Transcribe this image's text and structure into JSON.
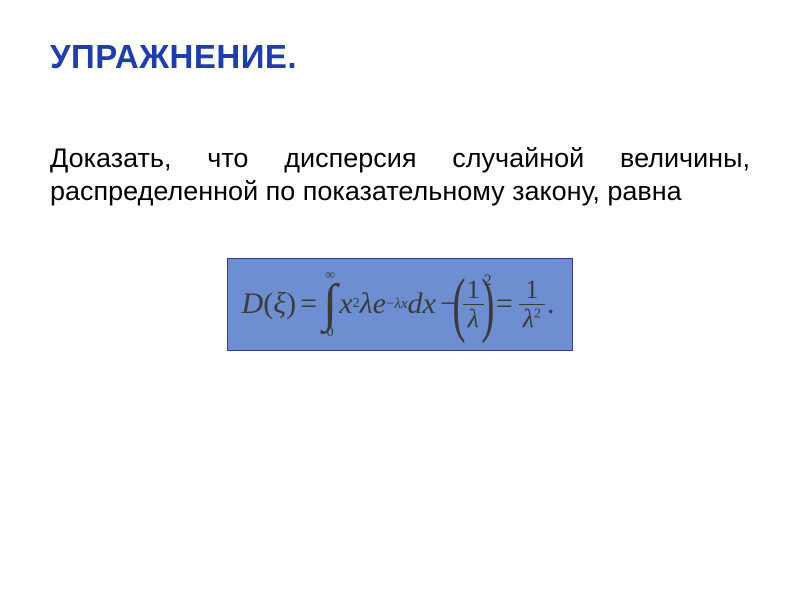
{
  "slide": {
    "title": "УПРАЖНЕНИЕ.",
    "title_color": "#1f3ea8",
    "title_fontsize": 33,
    "body_text": "Доказать, что дисперсия случайной величины, распределенной по показательному закону, равна",
    "body_color": "#000000",
    "body_fontsize": 27,
    "background_color": "#ffffff"
  },
  "formula": {
    "box_background": "#6d8fd1",
    "box_border_color": "#3b3b8a",
    "text_color": "#3a3a3a",
    "fontsize": 30,
    "D": "D",
    "open_paren": "(",
    "xi": "ξ",
    "close_paren": ")",
    "eq": "=",
    "integral": {
      "lower": "0",
      "upper": "∞",
      "sign": "∫"
    },
    "integrand": {
      "x": "x",
      "x_exp": "2",
      "lambda": "λ",
      "e": "e",
      "e_exp_minus": "−",
      "e_exp_lambda": "λ",
      "e_exp_x": "x",
      "dx": "dx"
    },
    "minus": "−",
    "big_lparen": "(",
    "frac1": {
      "num": "1",
      "den": "λ"
    },
    "big_rparen": ")",
    "outer_exp": "2",
    "eq2": "=",
    "frac2": {
      "num": "1",
      "den_lambda": "λ",
      "den_exp": "2"
    },
    "period": "."
  }
}
